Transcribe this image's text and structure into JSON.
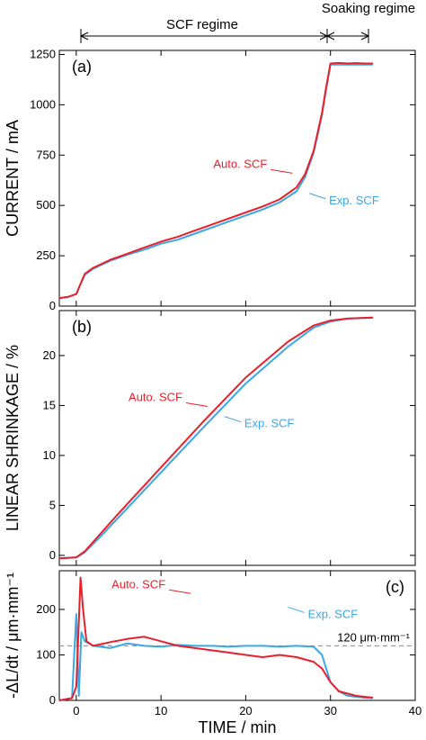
{
  "chart_data": {
    "type": "line",
    "header": {
      "regime1": "SCF regime",
      "regime2": "Soaking regime"
    },
    "colors": {
      "auto": "#e8202a",
      "exp": "#3aa7e6"
    },
    "x": {
      "label": "TIME  /  min",
      "lim": [
        -2,
        40
      ],
      "ticks": [
        0,
        10,
        20,
        30,
        40
      ],
      "tick_labels": [
        "0",
        "10",
        "20",
        "30",
        "40"
      ]
    },
    "panels": [
      {
        "label": "(a)",
        "ylabel": "CURRENT / mA",
        "ylim": [
          0,
          1270
        ],
        "yticks": [
          0,
          250,
          500,
          750,
          1000,
          1250
        ],
        "ytick_labels": [
          "0",
          "250",
          "500",
          "750",
          "1000",
          "1250"
        ],
        "series": [
          {
            "name": "Exp. SCF",
            "x": [
              -2,
              -1,
              0,
              0.5,
              1,
              2,
              4,
              6,
              8,
              10,
              12,
              14,
              16,
              18,
              20,
              22,
              24,
              26,
              27,
              28,
              29,
              29.5,
              30,
              31,
              32,
              33,
              34,
              35
            ],
            "y": [
              40,
              45,
              60,
              110,
              155,
              185,
              225,
              255,
              280,
              310,
              330,
              360,
              390,
              420,
              450,
              480,
              515,
              570,
              640,
              760,
              950,
              1080,
              1200,
              1200,
              1200,
              1200,
              1200,
              1200
            ]
          },
          {
            "name": "Auto. SCF",
            "x": [
              -2,
              -1,
              0,
              0.5,
              1,
              2,
              4,
              6,
              8,
              10,
              12,
              14,
              16,
              18,
              20,
              22,
              24,
              26,
              27,
              28,
              29,
              29.5,
              30,
              31,
              32,
              33,
              34,
              35
            ],
            "y": [
              40,
              45,
              60,
              110,
              160,
              190,
              230,
              260,
              290,
              320,
              345,
              375,
              405,
              435,
              465,
              495,
              530,
              590,
              655,
              770,
              960,
              1090,
              1205,
              1208,
              1205,
              1207,
              1205,
              1205
            ]
          }
        ],
        "annotations": [
          {
            "text": "Auto. SCF",
            "x": 25.5,
            "y": 660
          },
          {
            "text": "Exp. SCF",
            "x": 27.5,
            "y": 560
          }
        ]
      },
      {
        "label": "(b)",
        "ylabel": "LINEAR SHRINKAGE / %",
        "ylim": [
          -1,
          24.5
        ],
        "yticks": [
          0,
          5,
          10,
          15,
          20
        ],
        "ytick_labels": [
          "0",
          "5",
          "10",
          "15",
          "20"
        ],
        "series": [
          {
            "name": "Exp. SCF",
            "x": [
              -2,
              0,
              1,
              3,
              5,
              10,
              15,
              20,
              25,
              28,
              30,
              32,
              35
            ],
            "y": [
              -0.3,
              -0.2,
              0.3,
              2.0,
              3.8,
              8.3,
              12.8,
              17.2,
              20.9,
              22.8,
              23.4,
              23.7,
              23.8
            ]
          },
          {
            "name": "Auto. SCF",
            "x": [
              -2,
              0,
              1,
              3,
              5,
              10,
              15,
              20,
              25,
              28,
              30,
              32,
              35
            ],
            "y": [
              -0.3,
              -0.2,
              0.4,
              2.3,
              4.2,
              8.8,
              13.4,
              17.8,
              21.4,
              23.0,
              23.5,
              23.7,
              23.8
            ]
          }
        ],
        "annotations": [
          {
            "text": "Auto. SCF",
            "x": 15.5,
            "y": 14.9
          },
          {
            "text": "Exp. SCF",
            "x": 17.5,
            "y": 13.9
          }
        ]
      },
      {
        "label": "(c)",
        "ylabel": "-ΔL/dt / μm·mm⁻¹",
        "ylim": [
          0,
          285
        ],
        "yticks": [
          0,
          100,
          200
        ],
        "ytick_labels": [
          "0",
          "100",
          "200"
        ],
        "reference_line": {
          "y": 120,
          "label": "120 μm·mm⁻¹"
        },
        "series": [
          {
            "name": "Exp. SCF",
            "x": [
              -2,
              -0.5,
              0,
              0.3,
              0.6,
              1,
              2,
              4,
              6,
              8,
              10,
              12,
              14,
              16,
              18,
              20,
              22,
              24,
              26,
              28,
              29,
              30,
              31,
              32,
              33,
              34,
              35
            ],
            "y": [
              0,
              5,
              190,
              10,
              150,
              130,
              120,
              115,
              125,
              120,
              118,
              122,
              120,
              120,
              118,
              120,
              120,
              118,
              120,
              118,
              100,
              40,
              20,
              10,
              8,
              6,
              5
            ]
          },
          {
            "name": "Auto. SCF",
            "x": [
              -2,
              -0.5,
              0,
              0.5,
              0.8,
              1.2,
              2,
              4,
              6,
              8,
              10,
              12,
              14,
              16,
              18,
              20,
              22,
              24,
              26,
              28,
              29,
              30,
              31,
              32,
              33,
              34,
              35
            ],
            "y": [
              0,
              5,
              30,
              270,
              200,
              130,
              120,
              128,
              135,
              140,
              130,
              120,
              115,
              110,
              105,
              100,
              95,
              100,
              95,
              85,
              70,
              40,
              20,
              15,
              10,
              8,
              6
            ]
          }
        ],
        "annotations": [
          {
            "text": "Auto. SCF",
            "x": 13.5,
            "y": 235
          },
          {
            "text": "Exp. SCF",
            "x": 25,
            "y": 205
          }
        ]
      }
    ]
  }
}
